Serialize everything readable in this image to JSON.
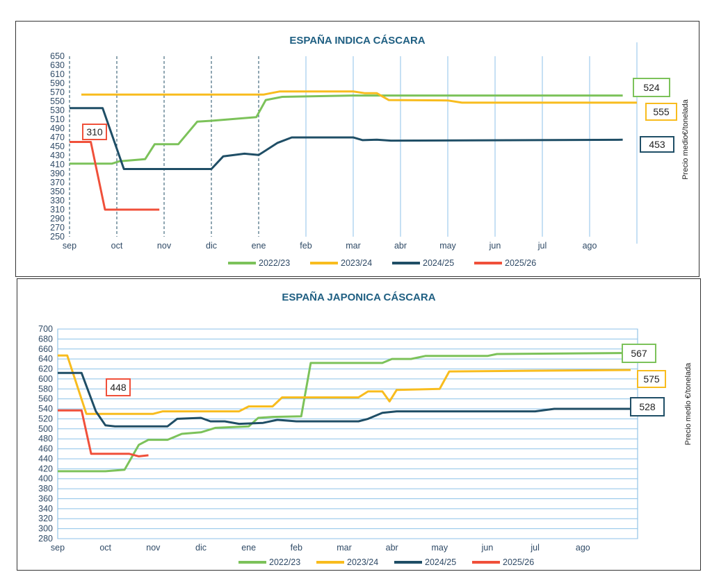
{
  "chart_data": [
    {
      "type": "line",
      "title": "ESPAÑA INDICA CÁSCARA",
      "ylabel": "Precio medio€/tonelada",
      "xlabel": "",
      "x_unit": "months since start of season (sep = 0)",
      "categories": [
        "sep",
        "oct",
        "nov",
        "dic",
        "ene",
        "feb",
        "mar",
        "abr",
        "may",
        "jun",
        "jul",
        "ago"
      ],
      "ylim": [
        250,
        650
      ],
      "yticks": [
        250,
        270,
        290,
        310,
        330,
        350,
        370,
        390,
        410,
        430,
        450,
        470,
        490,
        510,
        530,
        550,
        570,
        590,
        610,
        630,
        650
      ],
      "grid": "vertical",
      "legend": "bottom",
      "series": [
        {
          "name": "2022/23",
          "color": "#7cc25a",
          "end_label": "524",
          "points": [
            [
              0,
              412
            ],
            [
              0.9,
              412
            ],
            [
              1.05,
              417
            ],
            [
              1.6,
              422
            ],
            [
              1.8,
              455
            ],
            [
              2.3,
              455
            ],
            [
              2.7,
              505
            ],
            [
              3.0,
              507
            ],
            [
              3.95,
              515
            ],
            [
              4.15,
              553
            ],
            [
              4.5,
              560
            ],
            [
              6.0,
              563
            ],
            [
              11.7,
              563
            ]
          ]
        },
        {
          "name": "2023/24",
          "color": "#f8bc1e",
          "end_label": "555",
          "points": [
            [
              0.25,
              565
            ],
            [
              4.1,
              565
            ],
            [
              4.45,
              572
            ],
            [
              6.0,
              572
            ],
            [
              6.25,
              568
            ],
            [
              6.5,
              568
            ],
            [
              6.75,
              553
            ],
            [
              8.0,
              552
            ],
            [
              8.3,
              547
            ],
            [
              12,
              547
            ]
          ]
        },
        {
          "name": "2024/25",
          "color": "#1f4e66",
          "end_label": "453",
          "points": [
            [
              0,
              535
            ],
            [
              0.7,
              535
            ],
            [
              1.15,
              400
            ],
            [
              3.0,
              400
            ],
            [
              3.25,
              428
            ],
            [
              3.7,
              434
            ],
            [
              4.0,
              431
            ],
            [
              4.4,
              458
            ],
            [
              4.7,
              470
            ],
            [
              6.0,
              470
            ],
            [
              6.2,
              464
            ],
            [
              6.5,
              465
            ],
            [
              6.8,
              463
            ],
            [
              11.7,
              465
            ]
          ]
        },
        {
          "name": "2025/26",
          "color": "#f0503a",
          "end_label": "310",
          "points": [
            [
              0,
              460
            ],
            [
              0.45,
              460
            ],
            [
              0.75,
              310
            ],
            [
              1.9,
              310
            ]
          ]
        }
      ]
    },
    {
      "type": "line",
      "title": "ESPAÑA JAPONICA CÁSCARA",
      "ylabel": "Precio medio €/tonelada",
      "xlabel": "",
      "x_unit": "months since start of season (sep = 0)",
      "categories": [
        "sep",
        "oct",
        "nov",
        "dic",
        "ene",
        "feb",
        "mar",
        "abr",
        "may",
        "jun",
        "jul",
        "ago"
      ],
      "ylim": [
        280,
        700
      ],
      "yticks": [
        280,
        300,
        320,
        340,
        360,
        380,
        400,
        420,
        440,
        460,
        480,
        500,
        520,
        540,
        560,
        580,
        600,
        620,
        640,
        660,
        680,
        700
      ],
      "grid": "horizontal",
      "legend": "bottom",
      "series": [
        {
          "name": "2022/23",
          "color": "#7cc25a",
          "end_label": "567",
          "points": [
            [
              0,
              415
            ],
            [
              1.0,
              415
            ],
            [
              1.4,
              418
            ],
            [
              1.7,
              468
            ],
            [
              1.9,
              478
            ],
            [
              2.3,
              478
            ],
            [
              2.6,
              490
            ],
            [
              3.0,
              493
            ],
            [
              3.3,
              502
            ],
            [
              4.0,
              505
            ],
            [
              4.2,
              522
            ],
            [
              4.5,
              524
            ],
            [
              5.1,
              525
            ],
            [
              5.3,
              632
            ],
            [
              6.8,
              632
            ],
            [
              7.0,
              640
            ],
            [
              7.4,
              640
            ],
            [
              7.7,
              646
            ],
            [
              9.0,
              646
            ],
            [
              9.2,
              650
            ],
            [
              12,
              652
            ]
          ]
        },
        {
          "name": "2023/24",
          "color": "#f8bc1e",
          "end_label": "575",
          "points": [
            [
              0,
              647
            ],
            [
              0.2,
              647
            ],
            [
              0.6,
              530
            ],
            [
              2.0,
              530
            ],
            [
              2.2,
              535
            ],
            [
              3.8,
              535
            ],
            [
              4.0,
              545
            ],
            [
              4.5,
              545
            ],
            [
              4.7,
              563
            ],
            [
              6.3,
              563
            ],
            [
              6.5,
              575
            ],
            [
              6.8,
              575
            ],
            [
              6.95,
              555
            ],
            [
              7.1,
              578
            ],
            [
              8.0,
              580
            ],
            [
              8.2,
              615
            ],
            [
              12,
              618
            ]
          ]
        },
        {
          "name": "2024/25",
          "color": "#1f4e66",
          "end_label": "528",
          "points": [
            [
              0,
              612
            ],
            [
              0.5,
              612
            ],
            [
              0.8,
              535
            ],
            [
              1.0,
              507
            ],
            [
              1.2,
              505
            ],
            [
              2.3,
              505
            ],
            [
              2.5,
              520
            ],
            [
              3.0,
              522
            ],
            [
              3.2,
              515
            ],
            [
              3.5,
              515
            ],
            [
              3.8,
              510
            ],
            [
              4.3,
              512
            ],
            [
              4.6,
              518
            ],
            [
              5.0,
              515
            ],
            [
              6.3,
              515
            ],
            [
              6.5,
              520
            ],
            [
              6.8,
              532
            ],
            [
              7.1,
              535
            ],
            [
              10.0,
              535
            ],
            [
              10.4,
              540
            ],
            [
              12,
              540
            ]
          ]
        },
        {
          "name": "2025/26",
          "color": "#f0503a",
          "end_label": "448",
          "points": [
            [
              0,
              537
            ],
            [
              0.5,
              537
            ],
            [
              0.7,
              450
            ],
            [
              1.5,
              450
            ],
            [
              1.7,
              445
            ],
            [
              1.9,
              447
            ]
          ]
        }
      ]
    }
  ]
}
